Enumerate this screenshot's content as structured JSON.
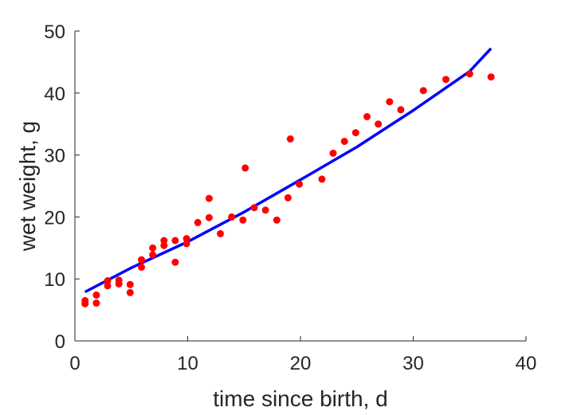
{
  "chart_data": {
    "type": "scatter",
    "xlabel": "time since birth, d",
    "ylabel": "wet weight, g",
    "xlim": [
      0,
      40
    ],
    "ylim": [
      0,
      50
    ],
    "xticks": [
      0,
      10,
      20,
      30,
      40
    ],
    "yticks": [
      0,
      10,
      20,
      30,
      40,
      50
    ],
    "grid": false,
    "colors": {
      "points": "#ff0000",
      "fit": "#0000ff",
      "axes": "#262626"
    },
    "series": [
      {
        "kind": "points",
        "x": [
          0.9,
          0.9,
          1.9,
          1.9,
          2.9,
          2.9,
          3.9,
          3.9,
          4.9,
          4.9,
          5.9,
          5.9,
          6.9,
          6.9,
          7.9,
          7.9,
          8.9,
          8.9,
          9.9,
          9.9,
          10.9,
          11.9,
          11.9,
          12.9,
          13.9,
          14.9,
          15.1,
          15.9,
          16.9,
          17.9,
          18.9,
          19.1,
          19.9,
          21.9,
          22.9,
          23.9,
          24.9,
          25.9,
          26.9,
          27.9,
          28.9,
          30.9,
          32.9,
          35.0,
          36.9
        ],
        "y": [
          6.0,
          6.5,
          6.1,
          7.4,
          9.7,
          8.9,
          9.2,
          9.8,
          9.1,
          7.8,
          11.9,
          13.1,
          13.9,
          15.0,
          15.4,
          16.2,
          16.2,
          12.7,
          16.5,
          15.7,
          19.1,
          23.0,
          19.9,
          17.3,
          20.0,
          19.5,
          27.9,
          21.5,
          21.1,
          19.5,
          23.1,
          32.6,
          25.3,
          26.1,
          30.3,
          32.2,
          33.6,
          36.2,
          35.0,
          38.6,
          37.3,
          40.4,
          42.2,
          43.1,
          42.6
        ]
      },
      {
        "kind": "fit",
        "x": [
          0.9,
          5,
          10,
          15,
          20,
          25,
          30,
          35,
          36.9
        ],
        "y": [
          7.9,
          11.8,
          16.0,
          20.8,
          26.0,
          31.3,
          37.2,
          43.5,
          47.2
        ]
      }
    ]
  }
}
